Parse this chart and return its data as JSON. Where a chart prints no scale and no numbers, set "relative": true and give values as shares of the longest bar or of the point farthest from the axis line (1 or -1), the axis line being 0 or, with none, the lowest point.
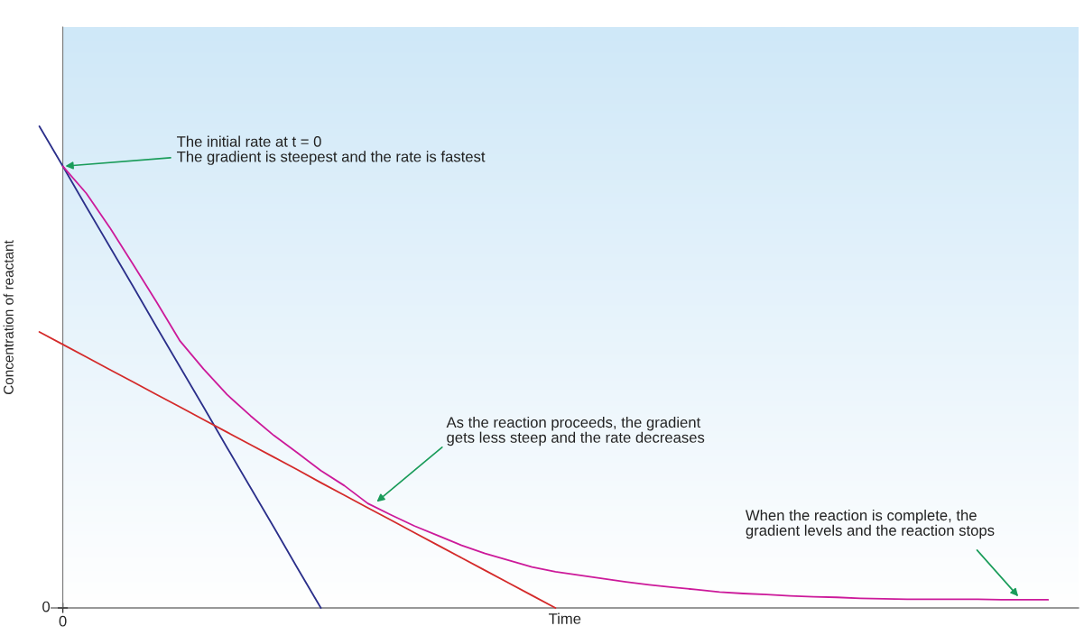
{
  "chart_data": {
    "type": "line",
    "relative": true,
    "xlabel": "Time",
    "ylabel": "Concentration of reactant",
    "categories": [
      null,
      null,
      null,
      null,
      null,
      null,
      null,
      null,
      null,
      null,
      null,
      null,
      null,
      null,
      null,
      null,
      null,
      null,
      null,
      null,
      null,
      null,
      null,
      null,
      null,
      null,
      null,
      null,
      null,
      null,
      null,
      null,
      null,
      null,
      null,
      null,
      null,
      null,
      null,
      null,
      null,
      null,
      null,
      null
    ],
    "series": [
      {
        "color": "#2b2f8a",
        "values": [
          1,
          0.917,
          0.833,
          0.75,
          0.667,
          0.583,
          0.5,
          0.417,
          0.333,
          0.25,
          0.167,
          0.083,
          0,
          null,
          null,
          null,
          null,
          null,
          null,
          null,
          null,
          null,
          null,
          null,
          null,
          null,
          null,
          null,
          null,
          null,
          null,
          null,
          null,
          null,
          null,
          null,
          null,
          null,
          null,
          null,
          null,
          null,
          null,
          null
        ]
      },
      {
        "color": "#d42a2a",
        "values": [
          0.573,
          0.547,
          0.521,
          0.495,
          0.469,
          0.443,
          0.417,
          0.391,
          0.365,
          0.339,
          0.313,
          0.287,
          0.26,
          0.234,
          0.208,
          0.182,
          0.156,
          0.13,
          0.104,
          0.078,
          0.052,
          0.026,
          0,
          null,
          null,
          null,
          null,
          null,
          null,
          null,
          null,
          null,
          null,
          null,
          null,
          null,
          null,
          null,
          null,
          null,
          null,
          null,
          null,
          null
        ]
      },
      {
        "color": "#cc1a9a",
        "values": [
          null,
          0.917,
          0.861,
          0.79,
          0.713,
          0.635,
          0.554,
          0.496,
          0.443,
          0.399,
          0.358,
          0.322,
          0.285,
          0.254,
          0.217,
          0.193,
          0.17,
          0.15,
          0.13,
          0.113,
          0.099,
          0.085,
          0.075,
          0.068,
          0.061,
          0.054,
          0.048,
          0.043,
          0.038,
          0.033,
          0.03,
          0.028,
          0.025,
          0.023,
          0.022,
          0.02,
          0.019,
          0.018,
          0.018,
          0.018,
          0.018,
          0.017,
          0.017,
          0.017
        ]
      }
    ],
    "annotations": [
      "The initial rate at t = 0\nThe gradient is steepest and the rate is fastest",
      "As the reaction proceeds, the gradient\ngets less steep and the rate decreases",
      "When the reaction is complete, the\ngradient levels and the reaction stops",
      "0",
      "0"
    ]
  }
}
